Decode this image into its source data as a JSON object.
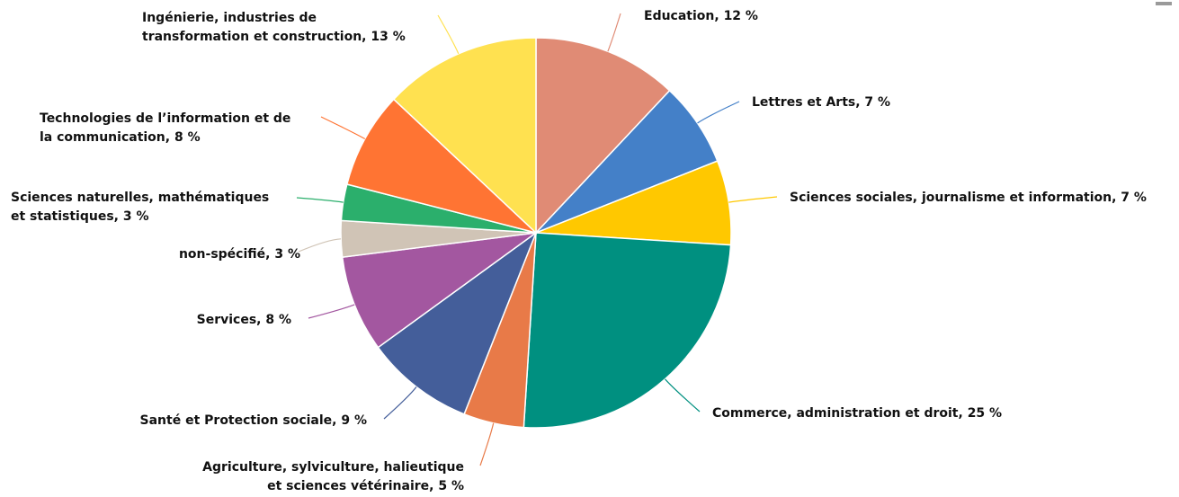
{
  "chart_data": {
    "type": "pie",
    "title": "",
    "slices": [
      {
        "key": "education",
        "label": [
          "Education, 12 %"
        ],
        "value": 12,
        "color": "#E08B75"
      },
      {
        "key": "lettres-arts",
        "label": [
          "Lettres et Arts, 7 %"
        ],
        "value": 7,
        "color": "#4480C8"
      },
      {
        "key": "sciences-sociales",
        "label": [
          "Sciences sociales, journalisme et information, 7 %"
        ],
        "value": 7,
        "color": "#FFC800"
      },
      {
        "key": "commerce",
        "label": [
          "Commerce, administration et droit, 25 %"
        ],
        "value": 25,
        "color": "#009080"
      },
      {
        "key": "agriculture",
        "label": [
          "Agriculture, sylviculture, halieutique",
          "et sciences vétérinaire, 5 %"
        ],
        "value": 5,
        "color": "#E87A48"
      },
      {
        "key": "sante",
        "label": [
          "Santé et Protection sociale, 9 %"
        ],
        "value": 9,
        "color": "#445E9A"
      },
      {
        "key": "services",
        "label": [
          "Services, 8 %"
        ],
        "value": 8,
        "color": "#A357A0"
      },
      {
        "key": "non-specifie",
        "label": [
          "non-spécifié, 3 %"
        ],
        "value": 3,
        "color": "#D0C4B6"
      },
      {
        "key": "sciences-naturelles",
        "label": [
          "Sciences naturelles, mathématiques",
          "et statistiques, 3 %"
        ],
        "value": 3,
        "color": "#2BAF6C"
      },
      {
        "key": "tic",
        "label": [
          "Technologies de l’information et de",
          "la communication, 8 %"
        ],
        "value": 8,
        "color": "#FF7433"
      },
      {
        "key": "ingenierie",
        "label": [
          "Ingénierie, industries de",
          "transformation et construction, 13 %"
        ],
        "value": 13,
        "color": "#FFE150"
      }
    ]
  }
}
